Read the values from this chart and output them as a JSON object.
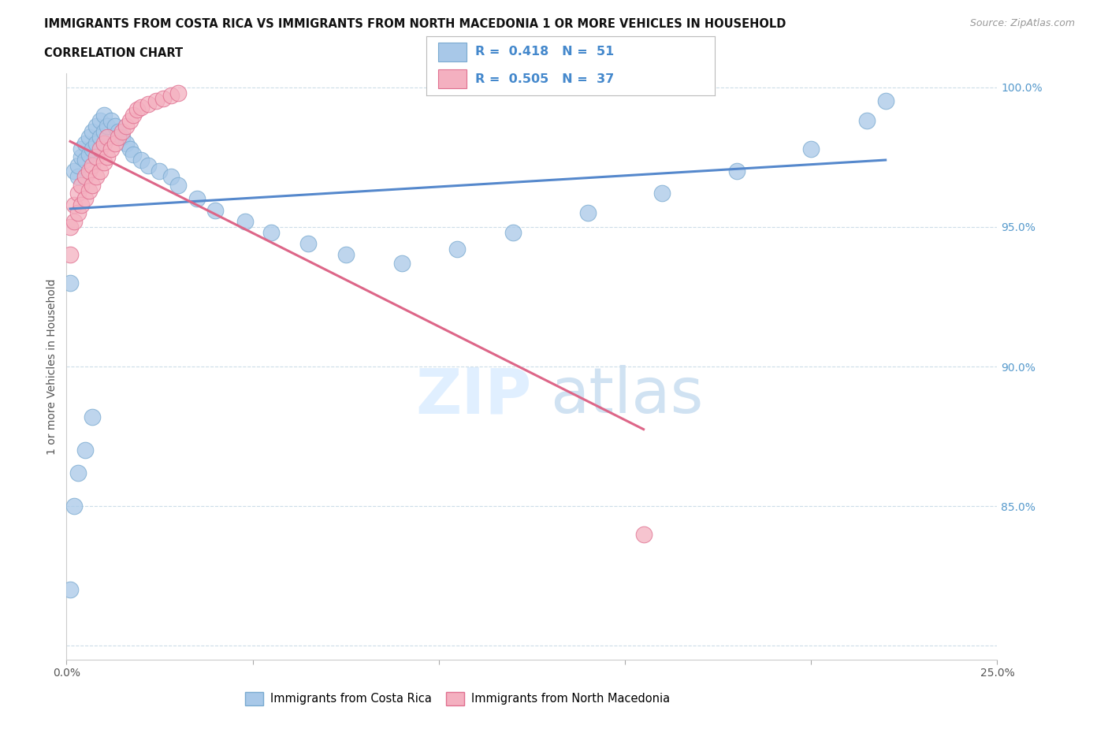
{
  "title_line1": "IMMIGRANTS FROM COSTA RICA VS IMMIGRANTS FROM NORTH MACEDONIA 1 OR MORE VEHICLES IN HOUSEHOLD",
  "title_line2": "CORRELATION CHART",
  "source_text": "Source: ZipAtlas.com",
  "ylabel": "1 or more Vehicles in Household",
  "legend_label1": "Immigrants from Costa Rica",
  "legend_label2": "Immigrants from North Macedonia",
  "r1": 0.418,
  "n1": 51,
  "r2": 0.505,
  "n2": 37,
  "color1": "#a8c8e8",
  "color2": "#f4b0c0",
  "edge_color1": "#7aaad0",
  "edge_color2": "#e07090",
  "line_color1": "#5588cc",
  "line_color2": "#dd6688",
  "xlim": [
    0.0,
    0.25
  ],
  "ylim": [
    0.795,
    1.005
  ],
  "x_ticks": [
    0.0,
    0.05,
    0.1,
    0.15,
    0.2,
    0.25
  ],
  "x_tick_labels": [
    "0.0%",
    "",
    "",
    "",
    "",
    "25.0%"
  ],
  "y_ticks": [
    0.8,
    0.85,
    0.9,
    0.95,
    1.0
  ],
  "y_tick_labels": [
    "",
    "85.0%",
    "90.0%",
    "95.0%",
    "100.0%"
  ],
  "costa_rica_x": [
    0.001,
    0.002,
    0.003,
    0.003,
    0.004,
    0.004,
    0.005,
    0.005,
    0.006,
    0.006,
    0.007,
    0.007,
    0.008,
    0.008,
    0.009,
    0.009,
    0.01,
    0.01,
    0.011,
    0.012,
    0.013,
    0.014,
    0.015,
    0.016,
    0.017,
    0.018,
    0.02,
    0.022,
    0.025,
    0.028,
    0.03,
    0.035,
    0.04,
    0.048,
    0.055,
    0.065,
    0.075,
    0.09,
    0.105,
    0.12,
    0.14,
    0.16,
    0.18,
    0.2,
    0.215,
    0.001,
    0.002,
    0.003,
    0.005,
    0.007,
    0.22
  ],
  "costa_rica_y": [
    0.93,
    0.97,
    0.968,
    0.972,
    0.975,
    0.978,
    0.974,
    0.98,
    0.976,
    0.982,
    0.978,
    0.984,
    0.98,
    0.986,
    0.982,
    0.988,
    0.984,
    0.99,
    0.986,
    0.988,
    0.986,
    0.984,
    0.982,
    0.98,
    0.978,
    0.976,
    0.974,
    0.972,
    0.97,
    0.968,
    0.965,
    0.96,
    0.956,
    0.952,
    0.948,
    0.944,
    0.94,
    0.937,
    0.942,
    0.948,
    0.955,
    0.962,
    0.97,
    0.978,
    0.988,
    0.82,
    0.85,
    0.862,
    0.87,
    0.882,
    0.995
  ],
  "north_mac_x": [
    0.001,
    0.001,
    0.002,
    0.002,
    0.003,
    0.003,
    0.004,
    0.004,
    0.005,
    0.005,
    0.006,
    0.006,
    0.007,
    0.007,
    0.008,
    0.008,
    0.009,
    0.009,
    0.01,
    0.01,
    0.011,
    0.011,
    0.012,
    0.013,
    0.014,
    0.015,
    0.016,
    0.017,
    0.018,
    0.019,
    0.02,
    0.022,
    0.024,
    0.026,
    0.028,
    0.03,
    0.155
  ],
  "north_mac_y": [
    0.94,
    0.95,
    0.952,
    0.958,
    0.955,
    0.962,
    0.958,
    0.965,
    0.96,
    0.968,
    0.963,
    0.97,
    0.965,
    0.972,
    0.968,
    0.975,
    0.97,
    0.978,
    0.973,
    0.98,
    0.975,
    0.982,
    0.978,
    0.98,
    0.982,
    0.984,
    0.986,
    0.988,
    0.99,
    0.992,
    0.993,
    0.994,
    0.995,
    0.996,
    0.997,
    0.998,
    0.84
  ],
  "watermark_zip": "ZIP",
  "watermark_atlas": "atlas"
}
